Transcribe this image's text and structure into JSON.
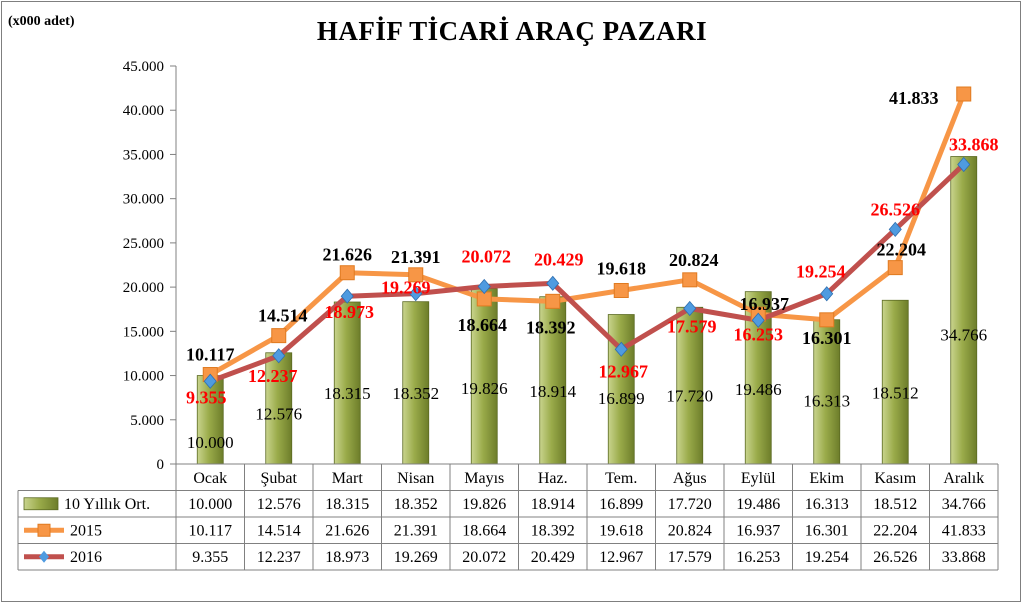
{
  "chart_data": {
    "type": "bar",
    "title": "HAFİF TİCARİ ARAÇ PAZARI",
    "unit_label": "(x000 adet)",
    "ylim": [
      0,
      45000
    ],
    "yticks": [
      "0",
      "5.000",
      "10.000",
      "15.000",
      "20.000",
      "25.000",
      "30.000",
      "35.000",
      "40.000",
      "45.000"
    ],
    "categories": [
      "Ocak",
      "Şubat",
      "Mart",
      "Nisan",
      "Mayıs",
      "Haz.",
      "Tem.",
      "Ağus",
      "Eylül",
      "Ekim",
      "Kasım",
      "Aralık"
    ],
    "series": [
      {
        "name": "10 Yıllık Ort.",
        "kind": "bar",
        "color": "#8a9a3e",
        "values": [
          10000,
          12576,
          18315,
          18352,
          19826,
          18914,
          16899,
          17720,
          19486,
          16313,
          18512,
          34766
        ],
        "labels": [
          "10.000",
          "12.576",
          "18.315",
          "18.352",
          "19.826",
          "18.914",
          "16.899",
          "17.720",
          "19.486",
          "16.313",
          "18.512",
          "34.766"
        ]
      },
      {
        "name": "2015",
        "kind": "line",
        "color": "#f79646",
        "label_color": "#000000",
        "values": [
          10117,
          14514,
          21626,
          21391,
          18664,
          18392,
          19618,
          20824,
          16937,
          16301,
          22204,
          41833
        ],
        "labels": [
          "10.117",
          "14.514",
          "21.626",
          "21.391",
          "18.664",
          "18.392",
          "19.618",
          "20.824",
          "16.937",
          "16.301",
          "22.204",
          "41.833"
        ]
      },
      {
        "name": "2016",
        "kind": "line",
        "color": "#c0504d",
        "marker_color": "#4f9be0",
        "label_color": "#ff0000",
        "values": [
          9355,
          12237,
          18973,
          19269,
          20072,
          20429,
          12967,
          17579,
          16253,
          19254,
          26526,
          33868
        ],
        "labels": [
          "9.355",
          "12.237",
          "18.973",
          "19.269",
          "20.072",
          "20.429",
          "12.967",
          "17.579",
          "16.253",
          "19.254",
          "26.526",
          "33.868"
        ]
      }
    ],
    "grid": false,
    "legend": "data-table"
  }
}
